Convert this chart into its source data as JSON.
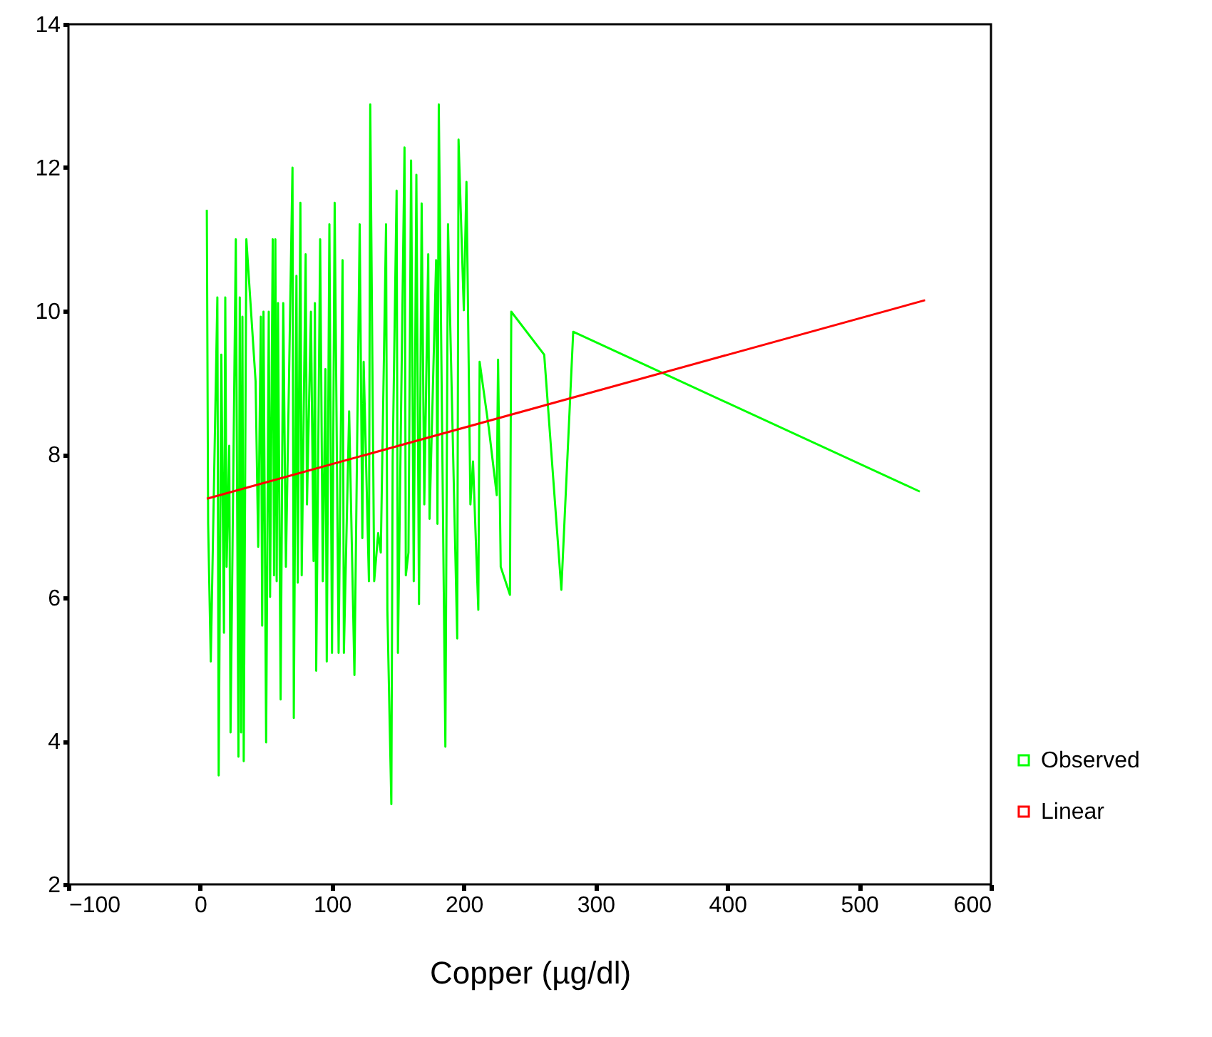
{
  "chart_data": {
    "type": "line",
    "xlabel": "Copper (µg/dl)",
    "xlim": [
      -100,
      600
    ],
    "xticks": [
      -100,
      0,
      100,
      200,
      300,
      400,
      500,
      600
    ],
    "ylim": [
      2,
      14
    ],
    "yticks": [
      2,
      4,
      6,
      8,
      10,
      12,
      14
    ],
    "grid": false,
    "legend": "bottom right",
    "marker": "none",
    "line_style": "solid",
    "series": [
      {
        "name": "Observed",
        "color": "#00ff00",
        "x": [
          5,
          6,
          8,
          13,
          14,
          16,
          18,
          19,
          20,
          22,
          23,
          27,
          29,
          30,
          31,
          32,
          33,
          35,
          42,
          44,
          46,
          47,
          48,
          50,
          52,
          53,
          55,
          56,
          57,
          58,
          59,
          61,
          63,
          65,
          70,
          71,
          73,
          74,
          76,
          77,
          80,
          81,
          84,
          86,
          87,
          88,
          91,
          93,
          95,
          96,
          98,
          100,
          102,
          105,
          108,
          109,
          113,
          117,
          121,
          123,
          124,
          128,
          129,
          132,
          135,
          137,
          141,
          142,
          145,
          146,
          149,
          150,
          155,
          156,
          158,
          160,
          162,
          164,
          166,
          168,
          170,
          173,
          174,
          179,
          180,
          181,
          186,
          188,
          195,
          196,
          200,
          202,
          205,
          207,
          211,
          212,
          219,
          225,
          226,
          228,
          235,
          236,
          261,
          274,
          283,
          546
        ],
        "values": [
          11.41,
          7.03,
          5.11,
          10.19,
          3.52,
          9.39,
          5.51,
          10.19,
          6.43,
          8.12,
          4.12,
          11.0,
          3.78,
          10.19,
          4.12,
          9.92,
          3.72,
          11.0,
          9.02,
          6.71,
          9.92,
          5.61,
          9.99,
          3.98,
          9.99,
          6.01,
          11.0,
          6.31,
          11.0,
          6.23,
          10.11,
          4.58,
          10.11,
          6.43,
          12.0,
          4.32,
          10.49,
          6.21,
          11.51,
          6.31,
          10.79,
          7.3,
          9.99,
          6.51,
          10.11,
          4.98,
          11.0,
          6.23,
          9.19,
          5.11,
          11.21,
          5.23,
          11.51,
          5.23,
          10.71,
          5.23,
          8.6,
          4.92,
          11.21,
          6.83,
          9.29,
          6.23,
          12.88,
          6.23,
          6.9,
          6.63,
          11.21,
          5.83,
          3.12,
          7.9,
          11.68,
          5.23,
          12.28,
          6.31,
          6.63,
          12.1,
          6.23,
          11.9,
          5.91,
          11.5,
          7.3,
          10.79,
          7.1,
          10.71,
          7.03,
          12.88,
          3.92,
          11.21,
          5.43,
          12.39,
          10.01,
          11.8,
          7.3,
          7.9,
          5.83,
          9.29,
          8.36,
          7.43,
          9.32,
          6.43,
          6.04,
          9.99,
          9.39,
          6.11,
          9.71,
          7.48
        ]
      },
      {
        "name": "Linear",
        "color": "#ff0000",
        "x": [
          5,
          550
        ],
        "values": [
          7.38,
          10.15
        ]
      }
    ]
  }
}
